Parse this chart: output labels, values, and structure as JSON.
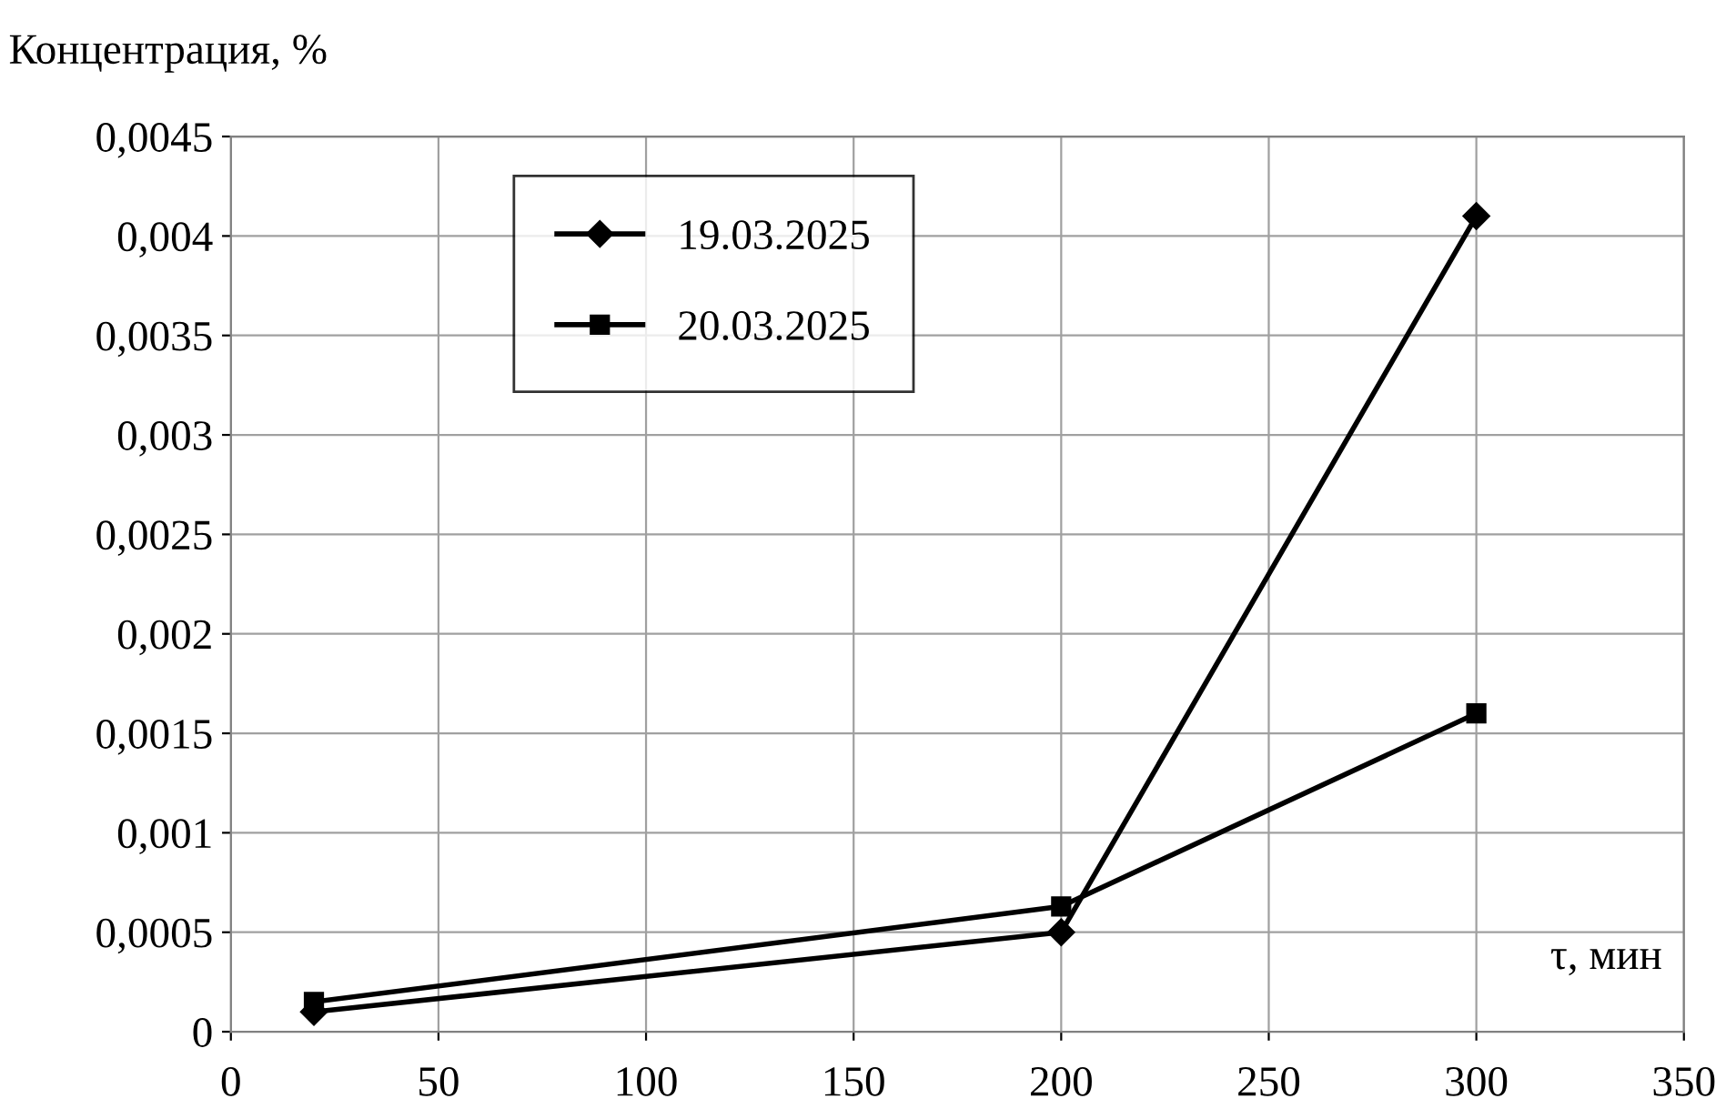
{
  "chart_data": {
    "type": "line",
    "ylabel": "Концентрация, %",
    "xlabel": "τ, мин",
    "series": [
      {
        "name": "19.03.2025",
        "color": "#000000",
        "marker": "diamond",
        "x": [
          20,
          200,
          300
        ],
        "values": [
          0.0001,
          0.0005,
          0.0041
        ]
      },
      {
        "name": "20.03.2025",
        "color": "#000000",
        "marker": "square",
        "x": [
          20,
          200,
          300
        ],
        "values": [
          0.00015,
          0.00063,
          0.0016
        ]
      }
    ],
    "xlim": [
      0,
      350
    ],
    "xticks": [
      0,
      50,
      100,
      150,
      200,
      250,
      300,
      350
    ],
    "ylim": [
      0,
      0.0045
    ],
    "yticks": [
      0,
      {
        "value": 0.0005,
        "label": "0,0005"
      },
      {
        "value": 0.001,
        "label": "0,001"
      },
      {
        "value": 0.0015,
        "label": "0,0015"
      },
      {
        "value": 0.002,
        "label": "0,002"
      },
      {
        "value": 0.0025,
        "label": "0,0025"
      },
      {
        "value": 0.003,
        "label": "0,003"
      },
      {
        "value": 0.0035,
        "label": "0,0035"
      },
      {
        "value": 0.004,
        "label": "0,004"
      },
      {
        "value": 0.0045,
        "label": "0,0045"
      }
    ],
    "grid": true,
    "legend": "top left",
    "line_style": "solid"
  }
}
